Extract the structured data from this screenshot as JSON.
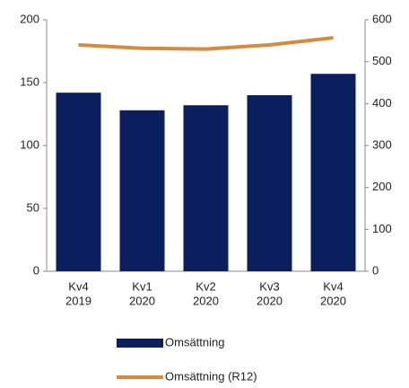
{
  "chart_data": {
    "type": "bar",
    "categories": [
      [
        "Kv4",
        "2019"
      ],
      [
        "Kv1",
        "2020"
      ],
      [
        "Kv2",
        "2020"
      ],
      [
        "Kv3",
        "2020"
      ],
      [
        "Kv4",
        "2020"
      ]
    ],
    "series": [
      {
        "name": "Omsättning",
        "type": "bar",
        "color": "#0b1f5e",
        "values": [
          142,
          128,
          132,
          140,
          157
        ]
      },
      {
        "name": "Omsättning (R12)",
        "type": "line",
        "axis": "y2",
        "color": "#d68a3c",
        "values": [
          540,
          532,
          530,
          540,
          557
        ]
      }
    ],
    "ylim": [
      0,
      200
    ],
    "yticks": [
      0,
      50,
      100,
      150,
      200
    ],
    "y2lim": [
      0,
      600
    ],
    "y2ticks": [
      0,
      100,
      200,
      300,
      400,
      500,
      600
    ]
  }
}
